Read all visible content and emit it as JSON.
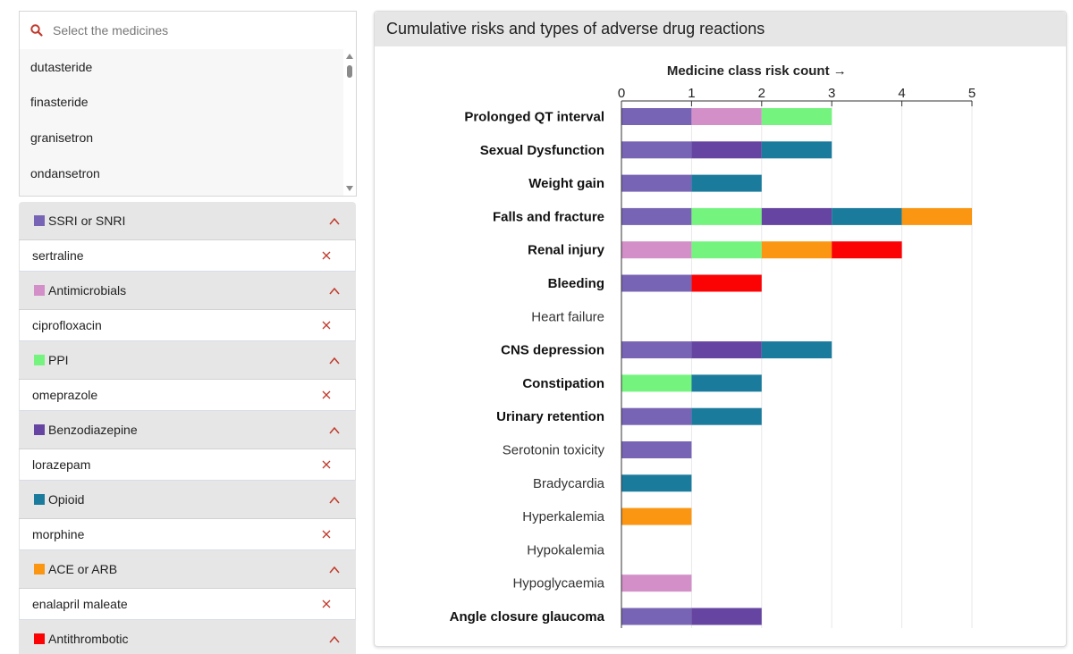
{
  "search": {
    "placeholder": "Select the medicines"
  },
  "medicine_list": [
    "dutasteride",
    "finasteride",
    "granisetron",
    "ondansetron"
  ],
  "classes": [
    {
      "name": "SSRI or SNRI",
      "color": "#7764b4",
      "medicine": "sertraline"
    },
    {
      "name": "Antimicrobials",
      "color": "#d38fc8",
      "medicine": "ciprofloxacin"
    },
    {
      "name": "PPI",
      "color": "#74f47e",
      "medicine": "omeprazole"
    },
    {
      "name": "Benzodiazepine",
      "color": "#6645a2",
      "medicine": "lorazepam"
    },
    {
      "name": "Opioid",
      "color": "#1b7b9c",
      "medicine": "morphine"
    },
    {
      "name": "ACE or ARB",
      "color": "#fb9612",
      "medicine": "enalapril maleate"
    },
    {
      "name": "Antithrombotic",
      "color": "#fb0305",
      "medicine": ""
    }
  ],
  "ui_colors": {
    "accent_red": "#c0392b",
    "header_grey": "#e6e6e6"
  },
  "card": {
    "title": "Cumulative risks and types of adverse drug reactions"
  },
  "chart_data": {
    "type": "bar",
    "orientation": "horizontal-stacked",
    "title": "Medicine class risk count →",
    "xlim": [
      0,
      5
    ],
    "ticks": [
      0,
      1,
      2,
      3,
      4,
      5
    ],
    "grid": true,
    "categories": [
      {
        "label": "Prolonged QT interval",
        "bold": true,
        "segments": [
          "SSRI or SNRI",
          "Antimicrobials",
          "PPI"
        ]
      },
      {
        "label": "Sexual Dysfunction",
        "bold": true,
        "segments": [
          "SSRI or SNRI",
          "Benzodiazepine",
          "Opioid"
        ]
      },
      {
        "label": "Weight gain",
        "bold": true,
        "segments": [
          "SSRI or SNRI",
          "Opioid"
        ]
      },
      {
        "label": "Falls and fracture",
        "bold": true,
        "segments": [
          "SSRI or SNRI",
          "PPI",
          "Benzodiazepine",
          "Opioid",
          "ACE or ARB"
        ]
      },
      {
        "label": "Renal injury",
        "bold": true,
        "segments": [
          "Antimicrobials",
          "PPI",
          "ACE or ARB",
          "Antithrombotic"
        ]
      },
      {
        "label": "Bleeding",
        "bold": true,
        "segments": [
          "SSRI or SNRI",
          "Antithrombotic"
        ]
      },
      {
        "label": "Heart failure",
        "bold": false,
        "segments": []
      },
      {
        "label": "CNS depression",
        "bold": true,
        "segments": [
          "SSRI or SNRI",
          "Benzodiazepine",
          "Opioid"
        ]
      },
      {
        "label": "Constipation",
        "bold": true,
        "segments": [
          "PPI",
          "Opioid"
        ]
      },
      {
        "label": "Urinary retention",
        "bold": true,
        "segments": [
          "SSRI or SNRI",
          "Opioid"
        ]
      },
      {
        "label": "Serotonin toxicity",
        "bold": false,
        "segments": [
          "SSRI or SNRI"
        ]
      },
      {
        "label": "Bradycardia",
        "bold": false,
        "segments": [
          "Opioid"
        ]
      },
      {
        "label": "Hyperkalemia",
        "bold": false,
        "segments": [
          "ACE or ARB"
        ]
      },
      {
        "label": "Hypokalemia",
        "bold": false,
        "segments": []
      },
      {
        "label": "Hypoglycaemia",
        "bold": false,
        "segments": [
          "Antimicrobials"
        ]
      },
      {
        "label": "Angle closure glaucoma",
        "bold": true,
        "segments": [
          "SSRI or SNRI",
          "Benzodiazepine"
        ]
      }
    ]
  }
}
